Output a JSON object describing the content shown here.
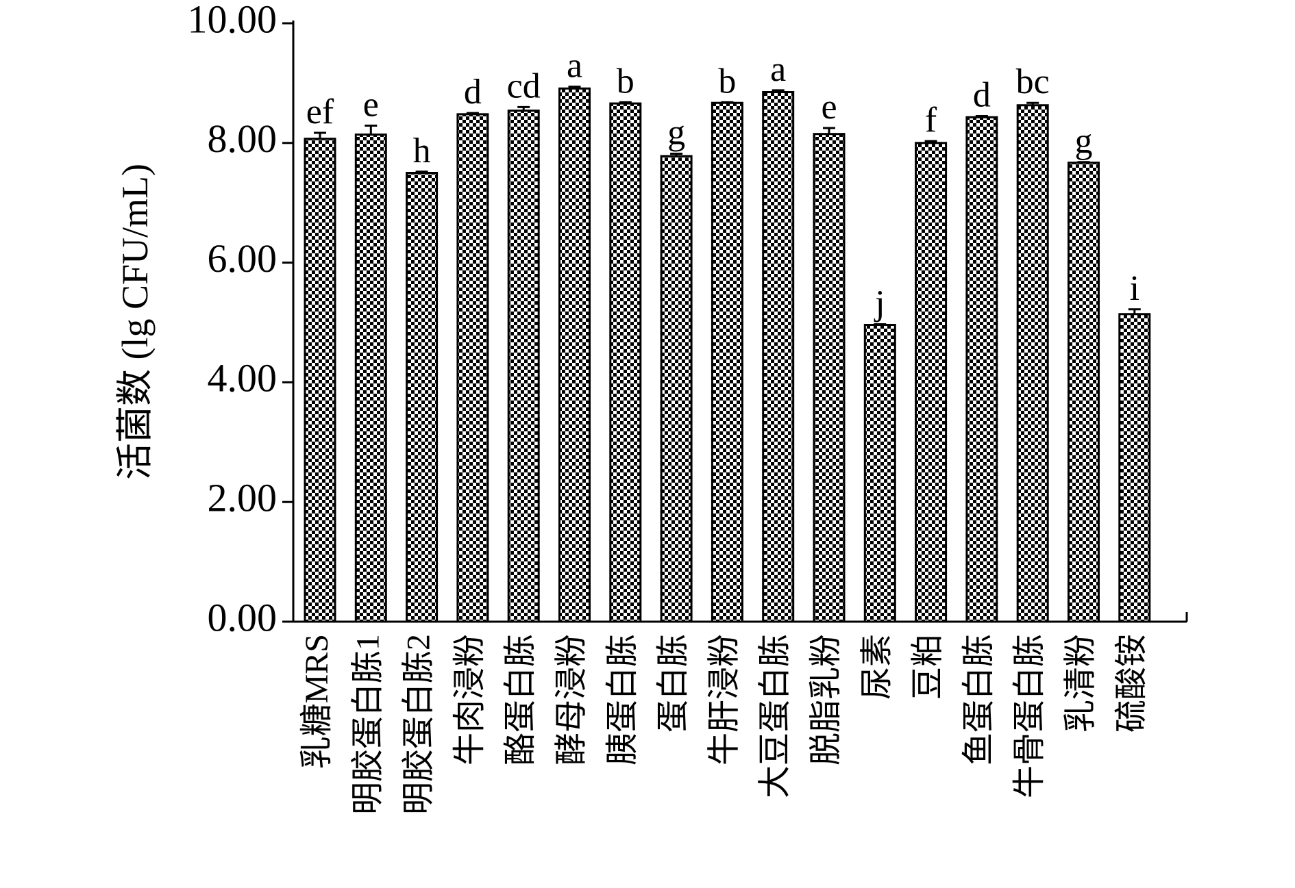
{
  "chart_data": {
    "type": "bar",
    "y_label": "活菌数 (lg CFU/mL)",
    "categories": [
      "乳糖MRS",
      "明胶蛋白胨1",
      "明胶蛋白胨2",
      "牛肉浸粉",
      "酪蛋白胨",
      "酵母浸粉",
      "胰蛋白胨",
      "蛋白胨",
      "牛肝浸粉",
      "大豆蛋白胨",
      "脱脂乳粉",
      "尿素",
      "豆粕",
      "鱼蛋白胨",
      "牛骨蛋白胨",
      "乳清粉",
      "硫酸铵"
    ],
    "values": [
      8.07,
      8.14,
      7.5,
      8.48,
      8.54,
      8.91,
      8.66,
      7.78,
      8.67,
      8.85,
      8.15,
      4.96,
      8.0,
      8.43,
      8.63,
      7.67,
      5.14
    ],
    "errors": [
      0.1,
      0.15,
      0.02,
      0.02,
      0.06,
      0.03,
      0.02,
      0.04,
      0.01,
      0.03,
      0.1,
      0.01,
      0.03,
      0.02,
      0.04,
      0.01,
      0.08
    ],
    "significance": [
      "ef",
      "e",
      "h",
      "d",
      "cd",
      "a",
      "b",
      "g",
      "b",
      "a",
      "e",
      "j",
      "f",
      "d",
      "bc",
      "g",
      "i"
    ],
    "color": "#000000",
    "ylim": [
      0,
      10
    ],
    "yticks": [
      {
        "value": 0,
        "label": "0.00"
      },
      {
        "value": 2,
        "label": "2.00"
      },
      {
        "value": 4,
        "label": "4.00"
      },
      {
        "value": 6,
        "label": "6.00"
      },
      {
        "value": 8,
        "label": "8.00"
      },
      {
        "value": 10,
        "label": "10.00"
      }
    ],
    "grid": false
  }
}
